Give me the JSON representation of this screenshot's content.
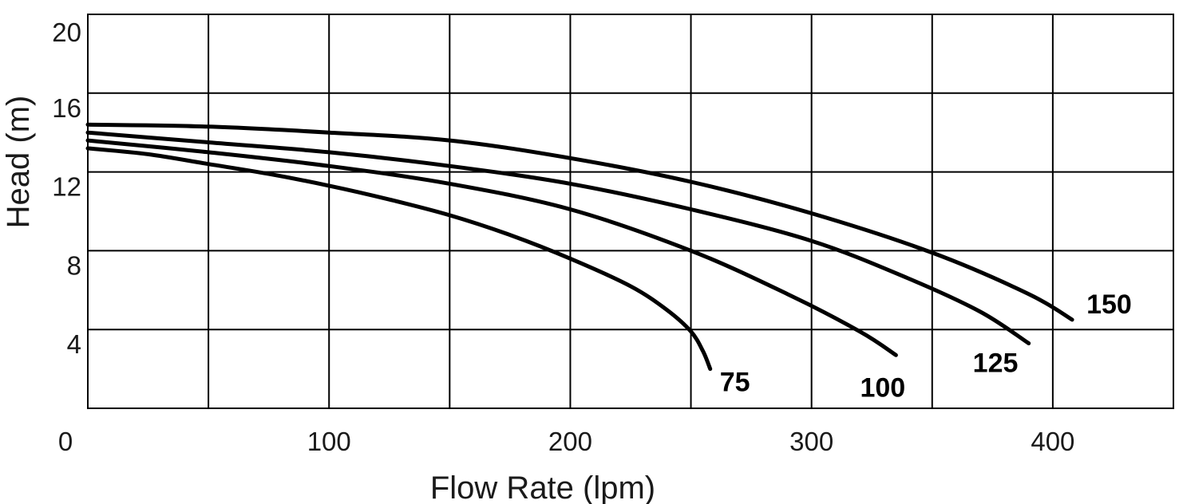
{
  "chart_data": {
    "type": "line",
    "title": "",
    "xlabel": "Flow Rate (lpm)",
    "ylabel": "Head (m)",
    "xlim": [
      0,
      450
    ],
    "ylim": [
      0,
      20
    ],
    "x_ticks": [
      0,
      100,
      200,
      300,
      400
    ],
    "x_tick_labels": [
      "0",
      "100",
      "200",
      "300",
      "400"
    ],
    "x_grid": [
      0,
      50,
      100,
      150,
      200,
      250,
      300,
      350,
      400,
      450
    ],
    "y_ticks": [
      4,
      8,
      12,
      16,
      20
    ],
    "y_tick_labels": [
      "4",
      "8",
      "12",
      "16",
      "20"
    ],
    "grid": true,
    "legend": "inline labels at curve ends",
    "series": [
      {
        "name": "75",
        "label": "75",
        "x": [
          0,
          25,
          50,
          75,
          100,
          125,
          150,
          175,
          200,
          225,
          240,
          250,
          255,
          258
        ],
        "y": [
          13.2,
          12.9,
          12.4,
          11.9,
          11.3,
          10.6,
          9.8,
          8.8,
          7.6,
          6.2,
          5.0,
          3.9,
          2.9,
          2.0
        ]
      },
      {
        "name": "100",
        "label": "100",
        "x": [
          0,
          50,
          100,
          150,
          200,
          250,
          290,
          320,
          335
        ],
        "y": [
          13.6,
          13.0,
          12.3,
          11.4,
          10.1,
          8.0,
          5.8,
          3.9,
          2.7
        ]
      },
      {
        "name": "125",
        "label": "125",
        "x": [
          0,
          50,
          100,
          150,
          200,
          250,
          300,
          340,
          370,
          390
        ],
        "y": [
          14.0,
          13.5,
          13.0,
          12.3,
          11.4,
          10.1,
          8.5,
          6.6,
          4.9,
          3.3
        ]
      },
      {
        "name": "150",
        "label": "150",
        "x": [
          0,
          50,
          100,
          150,
          200,
          250,
          300,
          350,
          390,
          408
        ],
        "y": [
          14.4,
          14.3,
          14.0,
          13.6,
          12.7,
          11.5,
          9.9,
          7.9,
          5.8,
          4.5
        ]
      }
    ]
  }
}
